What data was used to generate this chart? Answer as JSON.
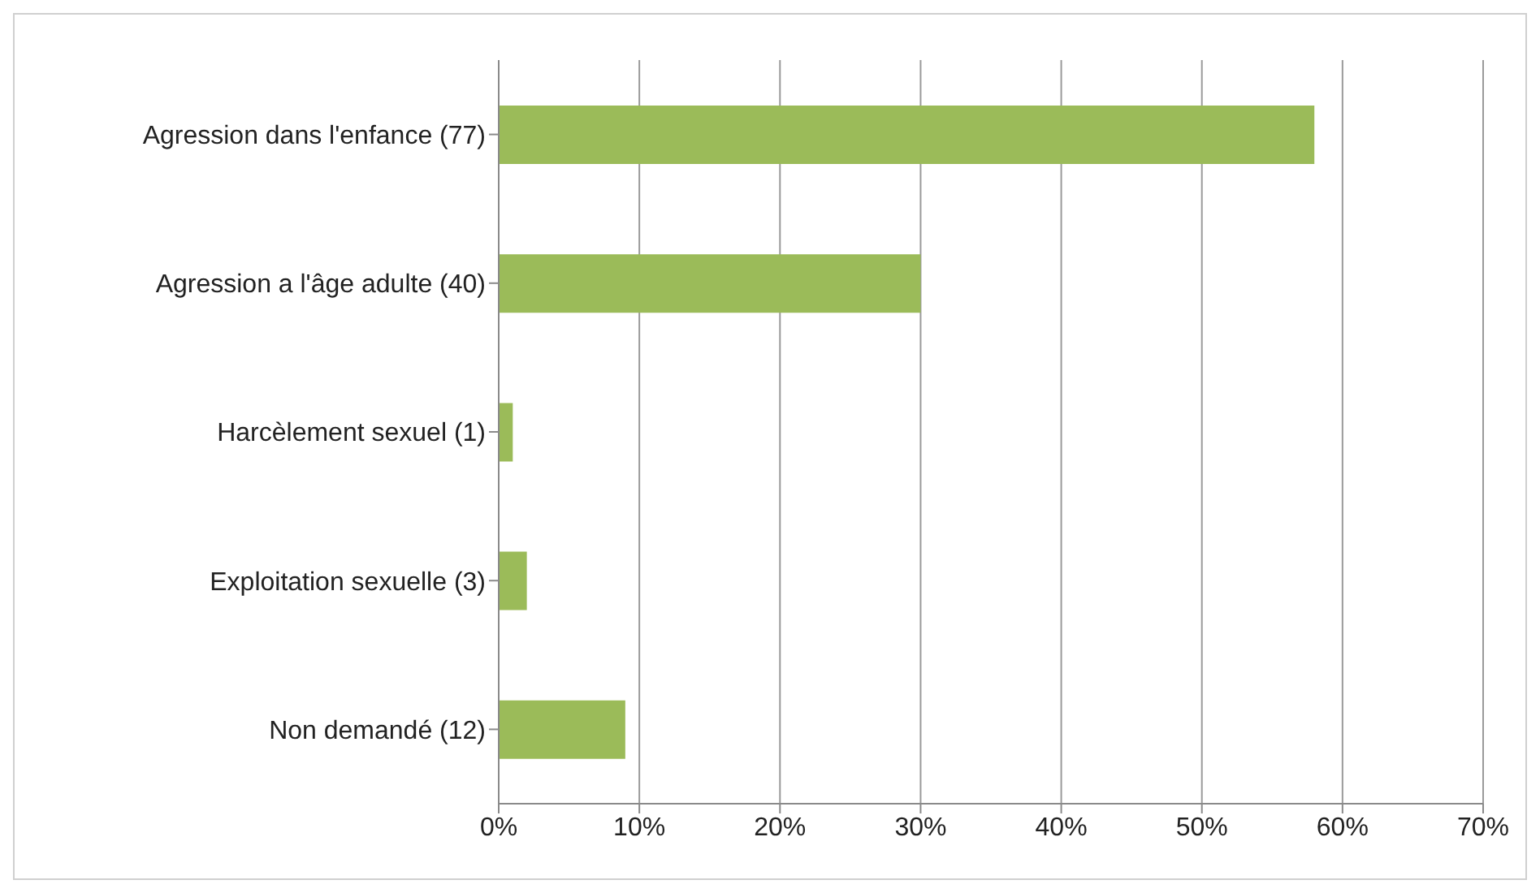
{
  "chart_data": {
    "type": "bar",
    "orientation": "horizontal",
    "categories": [
      "Agression dans l'enfance (77)",
      "Agression a l'âge adulte (40)",
      "Harcèlement sexuel (1)",
      "Exploitation sexuelle (3)",
      "Non demandé (12)"
    ],
    "values": [
      58,
      30,
      1,
      2,
      9
    ],
    "color": "#9bbb59",
    "xlim": [
      0,
      70
    ],
    "xticks": [
      {
        "value": 0,
        "label": "0%"
      },
      {
        "value": 10,
        "label": "10%"
      },
      {
        "value": 20,
        "label": "20%"
      },
      {
        "value": 30,
        "label": "30%"
      },
      {
        "value": 40,
        "label": "40%"
      },
      {
        "value": 50,
        "label": "50%"
      },
      {
        "value": 60,
        "label": "60%"
      },
      {
        "value": 70,
        "label": "70%"
      }
    ],
    "grid": "x"
  }
}
